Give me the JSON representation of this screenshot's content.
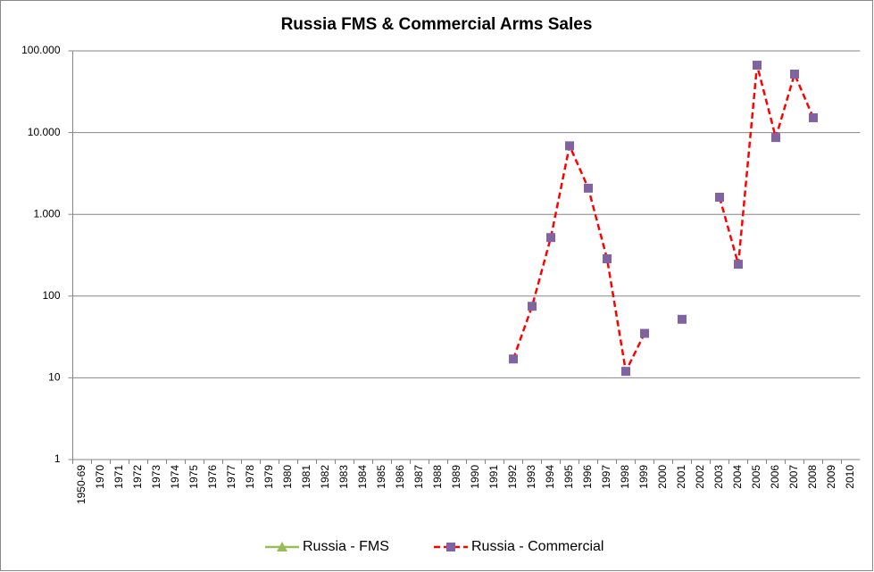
{
  "chart_data": {
    "type": "line",
    "title": "Russia FMS & Commercial Arms Sales",
    "categories": [
      "1950-69",
      "1970",
      "1971",
      "1972",
      "1973",
      "1974",
      "1975",
      "1976",
      "1977",
      "1978",
      "1979",
      "1980",
      "1981",
      "1982",
      "1983",
      "1984",
      "1985",
      "1986",
      "1987",
      "1988",
      "1989",
      "1990",
      "1991",
      "1992",
      "1993",
      "1994",
      "1995",
      "1996",
      "1997",
      "1998",
      "1999",
      "2000",
      "2001",
      "2002",
      "2003",
      "2004",
      "2005",
      "2006",
      "2007",
      "2008",
      "2009",
      "2010"
    ],
    "series": [
      {
        "name": "Russia - FMS",
        "color": "#9bbb59",
        "marker": "triangle",
        "dashed": false,
        "values": [
          null,
          null,
          null,
          null,
          null,
          null,
          null,
          null,
          null,
          null,
          null,
          null,
          null,
          null,
          null,
          null,
          null,
          null,
          null,
          null,
          null,
          null,
          null,
          null,
          null,
          null,
          null,
          null,
          null,
          null,
          null,
          null,
          null,
          null,
          null,
          null,
          null,
          null,
          null,
          null,
          null,
          null
        ]
      },
      {
        "name": "Russia - Commercial",
        "color": "#ff0000",
        "marker_color": "#8064a2",
        "marker": "square",
        "dashed": true,
        "values": [
          null,
          null,
          null,
          null,
          null,
          null,
          null,
          null,
          null,
          null,
          null,
          null,
          null,
          null,
          null,
          null,
          null,
          null,
          null,
          null,
          null,
          null,
          null,
          17,
          75,
          520,
          6900,
          2090,
          286,
          12,
          35,
          null,
          52,
          null,
          1620,
          245,
          66800,
          8700,
          52000,
          15200,
          null,
          null
        ]
      }
    ],
    "log_scale": true,
    "ylim": [
      1,
      100000
    ],
    "yticks": [
      1,
      10,
      100,
      {
        "value": 1000,
        "label": "1.000"
      },
      {
        "value": 10000,
        "label": "10.000"
      },
      {
        "value": 100000,
        "label": "100.000"
      }
    ],
    "grid": true,
    "legend": "bottom"
  }
}
